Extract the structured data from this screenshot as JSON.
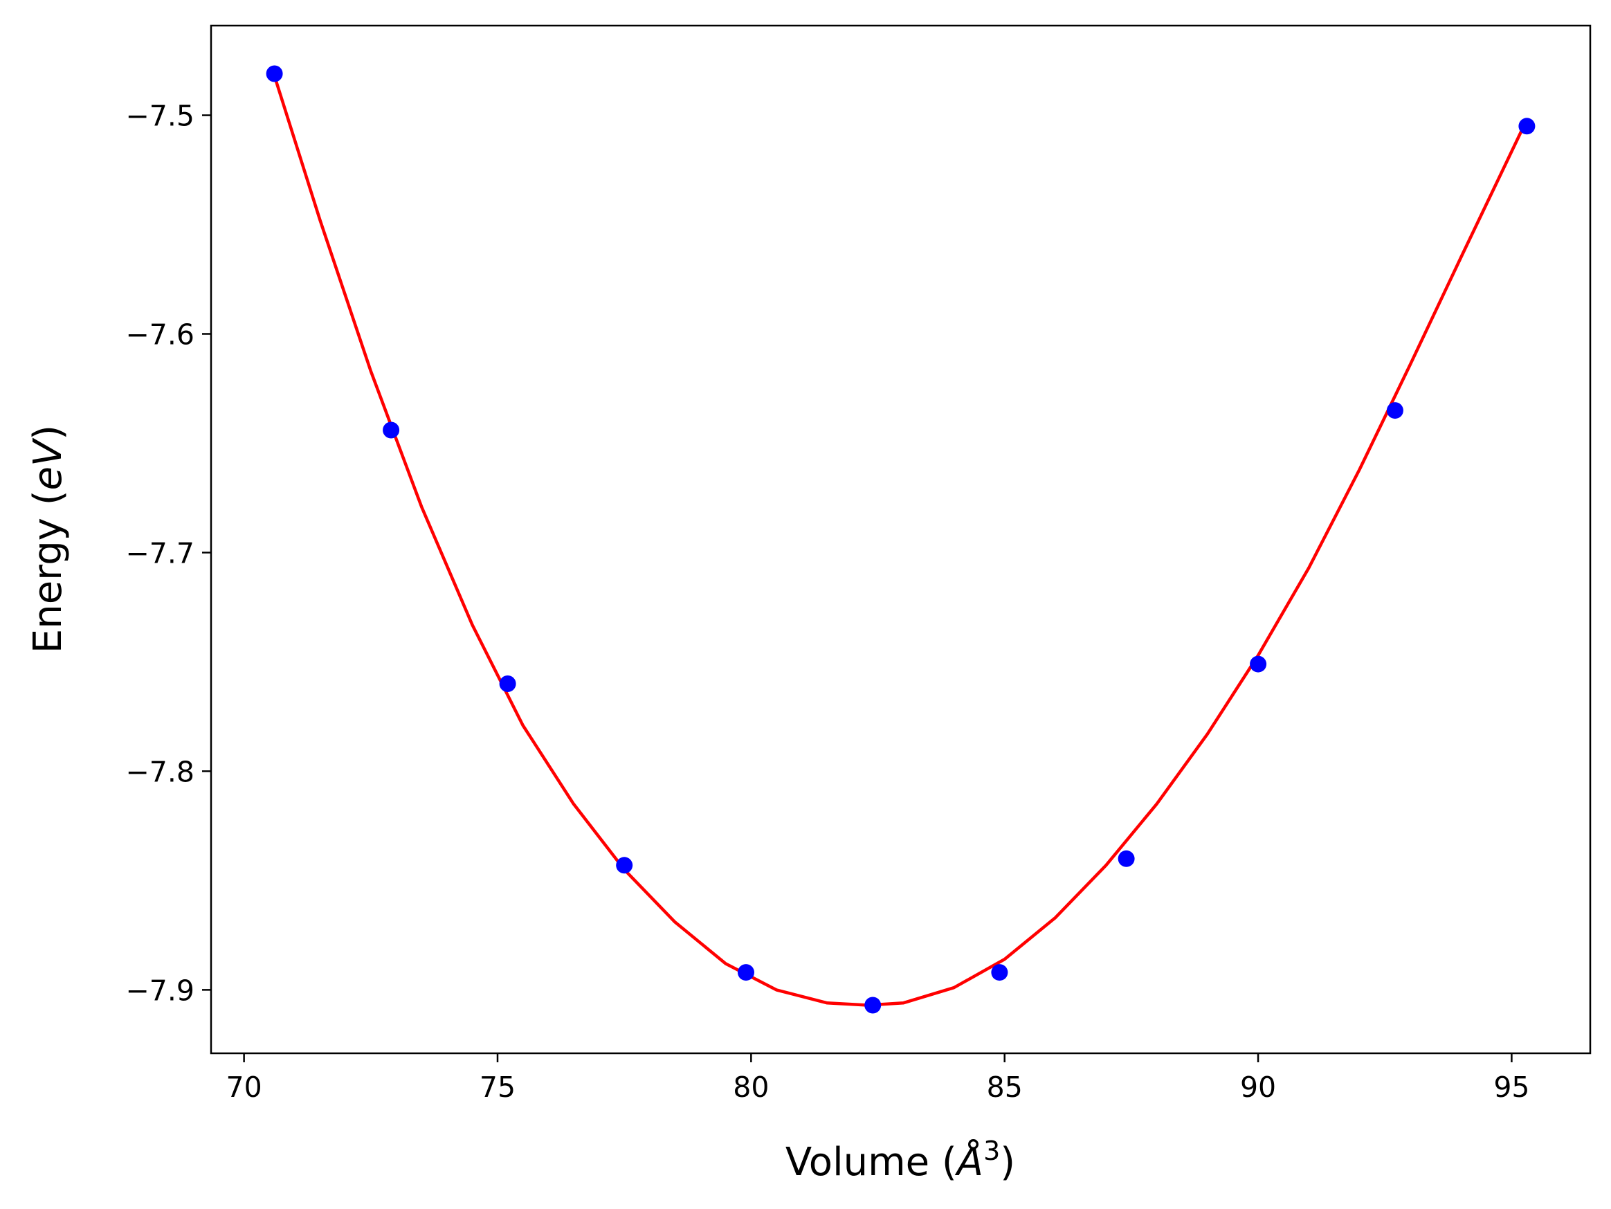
{
  "chart_data": {
    "type": "scatter",
    "xlabel": {
      "prefix": "Volume (",
      "symbol": "Å",
      "exponent": "3",
      "suffix": ")"
    },
    "ylabel": {
      "prefix": "Energy (",
      "unit": "eV",
      "suffix": ")"
    },
    "xlim": [
      69.35,
      96.55
    ],
    "ylim": [
      -7.929,
      -7.459
    ],
    "x_ticks": [
      {
        "value": 70,
        "label": "70"
      },
      {
        "value": 75,
        "label": "75"
      },
      {
        "value": 80,
        "label": "80"
      },
      {
        "value": 85,
        "label": "85"
      },
      {
        "value": 90,
        "label": "90"
      },
      {
        "value": 95,
        "label": "95"
      }
    ],
    "y_ticks": [
      {
        "value": -7.5,
        "label": "−7.5"
      },
      {
        "value": -7.6,
        "label": "−7.6"
      },
      {
        "value": -7.7,
        "label": "−7.7"
      },
      {
        "value": -7.8,
        "label": "−7.8"
      },
      {
        "value": -7.9,
        "label": "−7.9"
      }
    ],
    "points": {
      "color": "#0000ff",
      "x": [
        70.6,
        72.9,
        75.2,
        77.5,
        79.9,
        82.4,
        84.9,
        87.4,
        90.0,
        92.7,
        95.3
      ],
      "y": [
        -7.481,
        -7.644,
        -7.76,
        -7.843,
        -7.892,
        -7.907,
        -7.892,
        -7.84,
        -7.751,
        -7.635,
        -7.505
      ]
    },
    "fit": {
      "color": "#ff0000",
      "x": [
        70.6,
        71.5,
        72.5,
        73.5,
        74.5,
        75.5,
        76.5,
        77.5,
        78.5,
        79.5,
        80.5,
        81.5,
        82.3,
        83.0,
        84.0,
        85.0,
        86.0,
        87.0,
        88.0,
        89.0,
        90.0,
        91.0,
        92.0,
        93.0,
        94.0,
        95.3
      ],
      "y": [
        -7.482,
        -7.548,
        -7.617,
        -7.679,
        -7.733,
        -7.779,
        -7.815,
        -7.845,
        -7.869,
        -7.888,
        -7.9,
        -7.906,
        -7.907,
        -7.906,
        -7.899,
        -7.886,
        -7.867,
        -7.843,
        -7.815,
        -7.783,
        -7.747,
        -7.707,
        -7.662,
        -7.614,
        -7.565,
        -7.502
      ]
    }
  }
}
